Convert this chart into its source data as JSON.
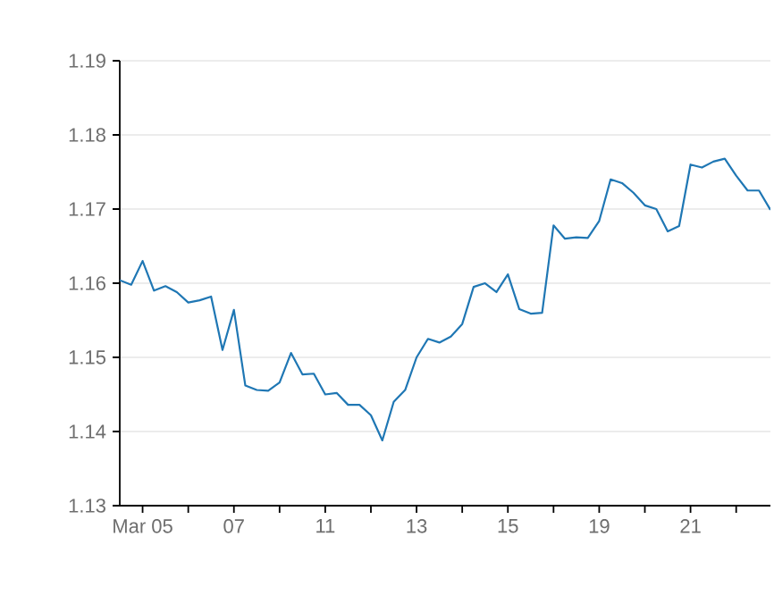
{
  "chart_data": {
    "type": "line",
    "categories": [
      null,
      null,
      "Mar 05",
      null,
      null,
      null,
      null,
      null,
      null,
      null,
      "07",
      null,
      null,
      null,
      null,
      null,
      null,
      null,
      "11",
      null,
      null,
      null,
      null,
      null,
      null,
      null,
      "13",
      null,
      null,
      null,
      null,
      null,
      null,
      null,
      "15",
      null,
      null,
      null,
      null,
      null,
      null,
      null,
      "19",
      null,
      null,
      null,
      null,
      null,
      null,
      null,
      "21",
      null,
      null,
      null,
      null,
      null,
      null,
      null
    ],
    "series": [
      {
        "color": "#1f77b4",
        "values": [
          1.1604,
          1.1598,
          1.163,
          1.159,
          1.1596,
          1.1588,
          1.1574,
          1.1577,
          1.1582,
          1.151,
          1.1564,
          1.1462,
          1.1456,
          1.1455,
          1.1466,
          1.1506,
          1.1477,
          1.1478,
          1.145,
          1.1452,
          1.1436,
          1.1436,
          1.1422,
          1.1388,
          1.144,
          1.1456,
          1.15,
          1.1525,
          1.152,
          1.1528,
          1.1545,
          1.1595,
          1.16,
          1.1588,
          1.1612,
          1.1565,
          1.1559,
          1.156,
          1.1678,
          1.166,
          1.1662,
          1.1661,
          1.1684,
          1.174,
          1.1735,
          1.1722,
          1.1705,
          1.17,
          1.167,
          1.1677,
          1.176,
          1.1756,
          1.1764,
          1.1768,
          1.1745,
          1.1725,
          1.1725,
          1.1699
        ]
      }
    ],
    "ylim": [
      1.13,
      1.19
    ],
    "yticks": [
      1.13,
      1.14,
      1.15,
      1.16,
      1.17,
      1.18,
      1.19
    ],
    "grid": "y",
    "marker": "none",
    "line_style": "solid"
  }
}
